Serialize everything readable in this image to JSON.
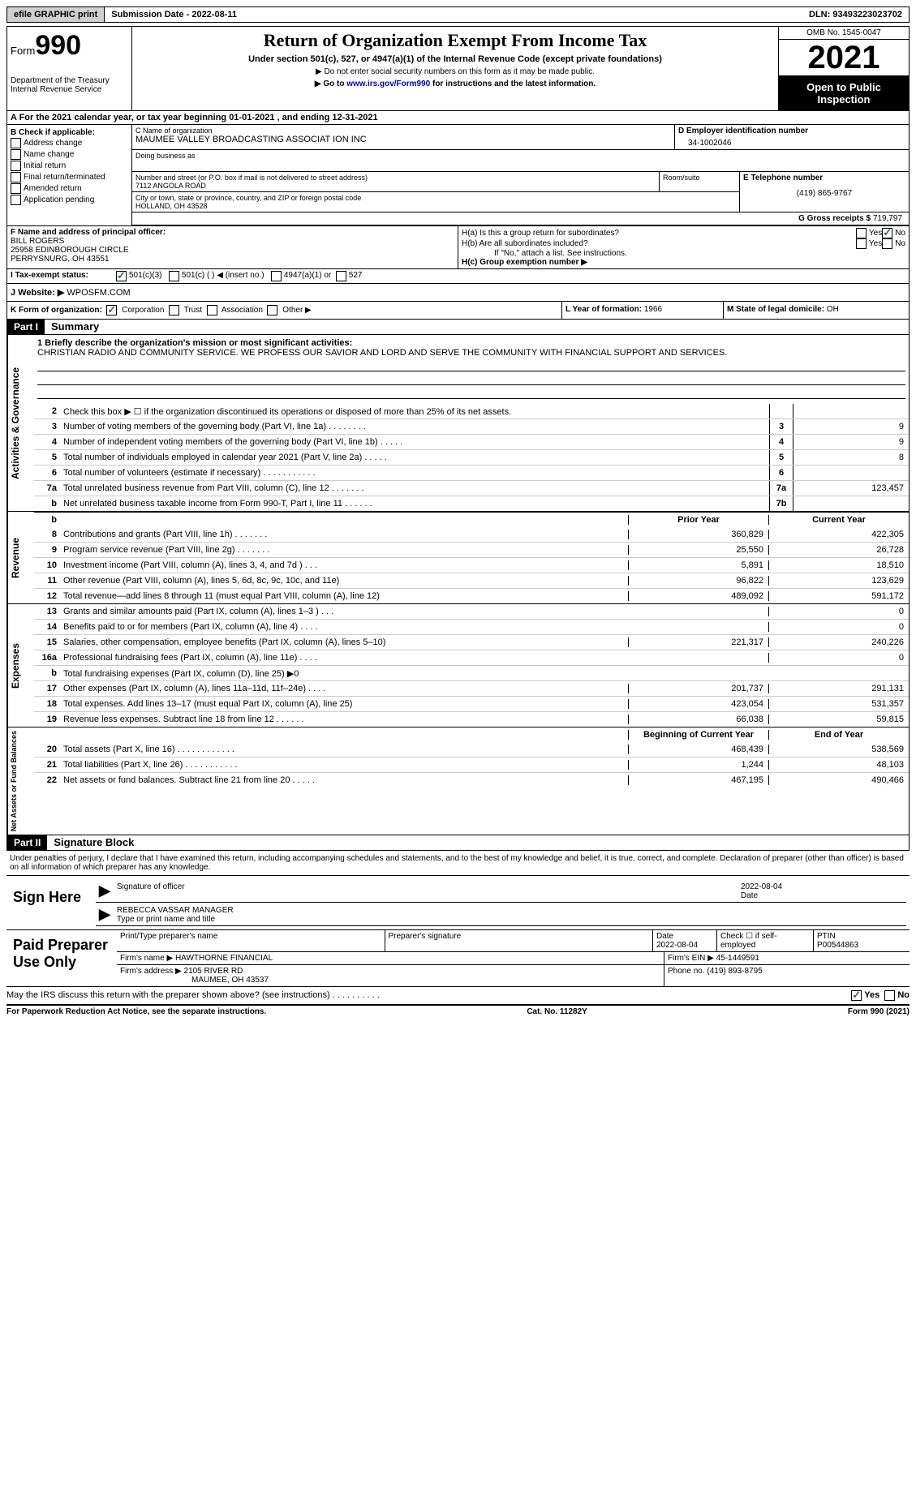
{
  "topbar": {
    "efile": "efile GRAPHIC print",
    "subdate_lbl": "Submission Date - ",
    "subdate": "2022-08-11",
    "dln_lbl": "DLN: ",
    "dln": "93493223023702"
  },
  "hdr": {
    "form_word": "Form",
    "form_num": "990",
    "dept": "Department of the Treasury Internal Revenue Service",
    "title": "Return of Organization Exempt From Income Tax",
    "sub": "Under section 501(c), 527, or 4947(a)(1) of the Internal Revenue Code (except private foundations)",
    "note1": "▶ Do not enter social security numbers on this form as it may be made public.",
    "note2_pre": "▶ Go to ",
    "note2_link": "www.irs.gov/Form990",
    "note2_post": " for instructions and the latest information.",
    "omb": "OMB No. 1545-0047",
    "year": "2021",
    "open": "Open to Public Inspection"
  },
  "a": {
    "text": "A For the 2021 calendar year, or tax year beginning 01-01-2021    , and ending 12-31-2021"
  },
  "b": {
    "hdr": "B Check if applicable:",
    "items": [
      "Address change",
      "Name change",
      "Initial return",
      "Final return/terminated",
      "Amended return",
      "Application pending"
    ]
  },
  "c": {
    "name_lbl": "C Name of organization",
    "name": "MAUMEE VALLEY BROADCASTING ASSOCIAT ION INC",
    "dba_lbl": "Doing business as",
    "street_lbl": "Number and street (or P.O. box if mail is not delivered to street address)",
    "street": "7112 ANGOLA ROAD",
    "room_lbl": "Room/suite",
    "city_lbl": "City or town, state or province, country, and ZIP or foreign postal code",
    "city": "HOLLAND, OH  43528"
  },
  "d": {
    "lbl": "D Employer identification number",
    "val": "34-1002046"
  },
  "e": {
    "lbl": "E Telephone number",
    "val": "(419) 865-9767"
  },
  "g": {
    "lbl": "G Gross receipts $ ",
    "val": "719,797"
  },
  "f": {
    "lbl": "F Name and address of principal officer:",
    "name": "BILL ROGERS",
    "addr1": "25958 EDINBOROUGH CIRCLE",
    "addr2": "PERRYSNURG, OH  43551"
  },
  "h": {
    "a_lbl": "H(a)  Is this a group return for subordinates?",
    "b_lbl": "H(b)  Are all subordinates included?",
    "b_note": "If \"No,\" attach a list. See instructions.",
    "c_lbl": "H(c)  Group exemption number ▶"
  },
  "i": {
    "lbl": "I    Tax-exempt status:",
    "opt1": "501(c)(3)",
    "opt2": "501(c) (   ) ◀ (insert no.)",
    "opt3": "4947(a)(1) or",
    "opt4": "527"
  },
  "j": {
    "lbl": "J    Website: ▶ ",
    "val": "WPOSFM.COM"
  },
  "k": {
    "lbl": "K Form of organization:",
    "corp": "Corporation",
    "trust": "Trust",
    "assoc": "Association",
    "other": "Other ▶",
    "l_lbl": "L Year of formation: ",
    "l_val": "1966",
    "m_lbl": "M State of legal domicile: ",
    "m_val": "OH"
  },
  "part1": {
    "hdr": "Part I",
    "title": "Summary"
  },
  "mission": {
    "lbl": "1   Briefly describe the organization's mission or most significant activities:",
    "text": "CHRISTIAN RADIO AND COMMUNITY SERVICE. WE PROFESS OUR SAVIOR AND LORD AND SERVE THE COMMUNITY WITH FINANCIAL SUPPORT AND SERVICES."
  },
  "gov_lines": [
    {
      "n": "2",
      "t": "Check this box ▶ ☐  if the organization discontinued its operations or disposed of more than 25% of its net assets.",
      "box": "",
      "v": ""
    },
    {
      "n": "3",
      "t": "Number of voting members of the governing body (Part VI, line 1a)   .    .    .    .    .    .    .    .",
      "box": "3",
      "v": "9"
    },
    {
      "n": "4",
      "t": "Number of independent voting members of the governing body (Part VI, line 1b)    .    .    .    .    .",
      "box": "4",
      "v": "9"
    },
    {
      "n": "5",
      "t": "Total number of individuals employed in calendar year 2021 (Part V, line 2a)    .    .    .    .    .",
      "box": "5",
      "v": "8"
    },
    {
      "n": "6",
      "t": "Total number of volunteers (estimate if necessary)    .    .    .    .    .    .    .    .    .    .    .",
      "box": "6",
      "v": ""
    },
    {
      "n": "7a",
      "t": "Total unrelated business revenue from Part VIII, column (C), line 12    .    .    .    .    .    .    .",
      "box": "7a",
      "v": "123,457"
    },
    {
      "n": "b",
      "t": "Net unrelated business taxable income from Form 990-T, Part I, line 11    .    .    .    .    .    .",
      "box": "7b",
      "v": ""
    }
  ],
  "rev_hdr": {
    "prior": "Prior Year",
    "curr": "Current Year"
  },
  "rev_lines": [
    {
      "n": "8",
      "t": "Contributions and grants (Part VIII, line 1h)    .    .    .    .    .    .    .",
      "p": "360,829",
      "c": "422,305"
    },
    {
      "n": "9",
      "t": "Program service revenue (Part VIII, line 2g)    .    .    .    .    .    .    .",
      "p": "25,550",
      "c": "26,728"
    },
    {
      "n": "10",
      "t": "Investment income (Part VIII, column (A), lines 3, 4, and 7d )    .    .    .",
      "p": "5,891",
      "c": "18,510"
    },
    {
      "n": "11",
      "t": "Other revenue (Part VIII, column (A), lines 5, 6d, 8c, 9c, 10c, and 11e)",
      "p": "96,822",
      "c": "123,629"
    },
    {
      "n": "12",
      "t": "Total revenue—add lines 8 through 11 (must equal Part VIII, column (A), line 12)",
      "p": "489,092",
      "c": "591,172"
    }
  ],
  "exp_lines": [
    {
      "n": "13",
      "t": "Grants and similar amounts paid (Part IX, column (A), lines 1–3 )   .    .    .",
      "p": "",
      "c": "0"
    },
    {
      "n": "14",
      "t": "Benefits paid to or for members (Part IX, column (A), line 4)    .    .    .    .",
      "p": "",
      "c": "0"
    },
    {
      "n": "15",
      "t": "Salaries, other compensation, employee benefits (Part IX, column (A), lines 5–10)",
      "p": "221,317",
      "c": "240,226"
    },
    {
      "n": "16a",
      "t": "Professional fundraising fees (Part IX, column (A), line 11e)    .    .    .    .",
      "p": "",
      "c": "0"
    },
    {
      "n": "b",
      "t": "Total fundraising expenses (Part IX, column (D), line 25) ▶0",
      "p": "shade",
      "c": "shade"
    },
    {
      "n": "17",
      "t": "Other expenses (Part IX, column (A), lines 11a–11d, 11f–24e)    .    .    .    .",
      "p": "201,737",
      "c": "291,131"
    },
    {
      "n": "18",
      "t": "Total expenses. Add lines 13–17 (must equal Part IX, column (A), line 25)",
      "p": "423,054",
      "c": "531,357"
    },
    {
      "n": "19",
      "t": "Revenue less expenses. Subtract line 18 from line 12    .    .    .    .    .    .",
      "p": "66,038",
      "c": "59,815"
    }
  ],
  "net_hdr": {
    "prior": "Beginning of Current Year",
    "curr": "End of Year"
  },
  "net_lines": [
    {
      "n": "20",
      "t": "Total assets (Part X, line 16)   .    .    .    .    .    .    .    .    .    .    .    .",
      "p": "468,439",
      "c": "538,569"
    },
    {
      "n": "21",
      "t": "Total liabilities (Part X, line 26)   .    .    .    .    .    .    .    .    .    .    .",
      "p": "1,244",
      "c": "48,103"
    },
    {
      "n": "22",
      "t": "Net assets or fund balances. Subtract line 21 from line 20   .    .    .    .    .",
      "p": "467,195",
      "c": "490,466"
    }
  ],
  "part2": {
    "hdr": "Part II",
    "title": "Signature Block"
  },
  "penalty": "Under penalties of perjury, I declare that I have examined this return, including accompanying schedules and statements, and to the best of my knowledge and belief, it is true, correct, and complete. Declaration of preparer (other than officer) is based on all information of which preparer has any knowledge.",
  "sign": {
    "here": "Sign Here",
    "sig_lbl": "Signature of officer",
    "date": "2022-08-04",
    "date_lbl": "Date",
    "name": "REBECCA VASSAR  MANAGER",
    "name_lbl": "Type or print name and title"
  },
  "prep": {
    "hdr": "Paid Preparer Use Only",
    "r1": {
      "a": "Print/Type preparer's name",
      "b": "Preparer's signature",
      "c_lbl": "Date",
      "c": "2022-08-04",
      "d": "Check ☐ if self-employed",
      "e_lbl": "PTIN",
      "e": "P00544863"
    },
    "r2": {
      "a": "Firm's name      ▶ HAWTHORNE FINANCIAL",
      "b": "Firm's EIN ▶ 45-1449591"
    },
    "r3": {
      "a": "Firm's address ▶ 2105 RIVER RD",
      "b": "Phone no. (419) 893-8795"
    },
    "r3b": "MAUMEE, OH  43537"
  },
  "discuss": "May the IRS discuss this return with the preparer shown above? (see instructions)    .    .    .    .    .    .    .    .    .    .",
  "footer": {
    "left": "For Paperwork Reduction Act Notice, see the separate instructions.",
    "mid": "Cat. No. 11282Y",
    "right": "Form 990 (2021)"
  },
  "yes": "Yes",
  "no": "No"
}
